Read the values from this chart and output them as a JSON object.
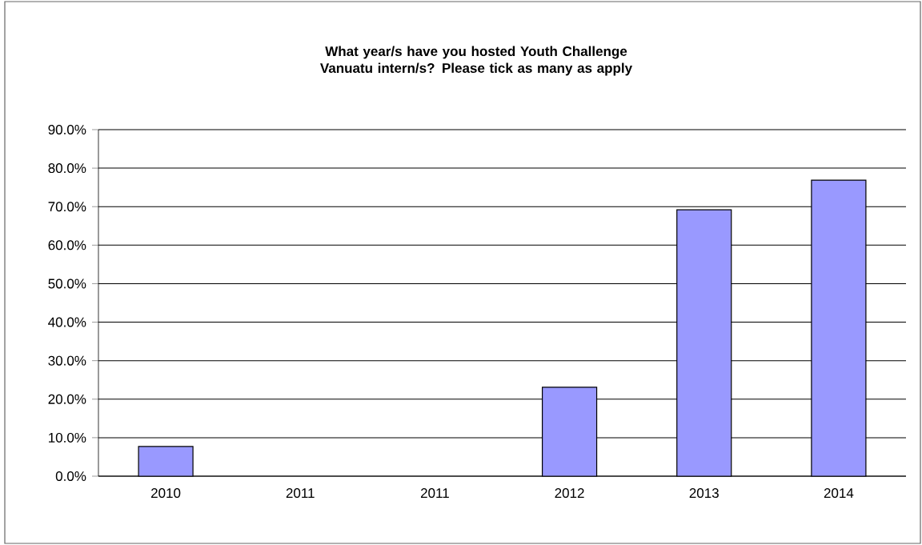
{
  "chart_data": {
    "type": "bar",
    "title": "What year/s have you hosted Youth Challenge Vanuatu intern/s? Please tick as many as apply",
    "categories": [
      "2010",
      "2011",
      "2011",
      "2012",
      "2013",
      "2014"
    ],
    "values": [
      7.7,
      null,
      null,
      23.1,
      69.2,
      76.9
    ],
    "color": "#9999ff",
    "ylim": [
      0,
      90
    ],
    "yticks": [
      {
        "value": 0,
        "label": "0.0%"
      },
      {
        "value": 10,
        "label": "10.0%"
      },
      {
        "value": 20,
        "label": "20.0%"
      },
      {
        "value": 30,
        "label": "30.0%"
      },
      {
        "value": 40,
        "label": "40.0%"
      },
      {
        "value": 50,
        "label": "50.0%"
      },
      {
        "value": 60,
        "label": "60.0%"
      },
      {
        "value": 70,
        "label": "70.0%"
      },
      {
        "value": 80,
        "label": "80.0%"
      },
      {
        "value": 90,
        "label": "90.0%"
      }
    ],
    "grid": "y"
  }
}
